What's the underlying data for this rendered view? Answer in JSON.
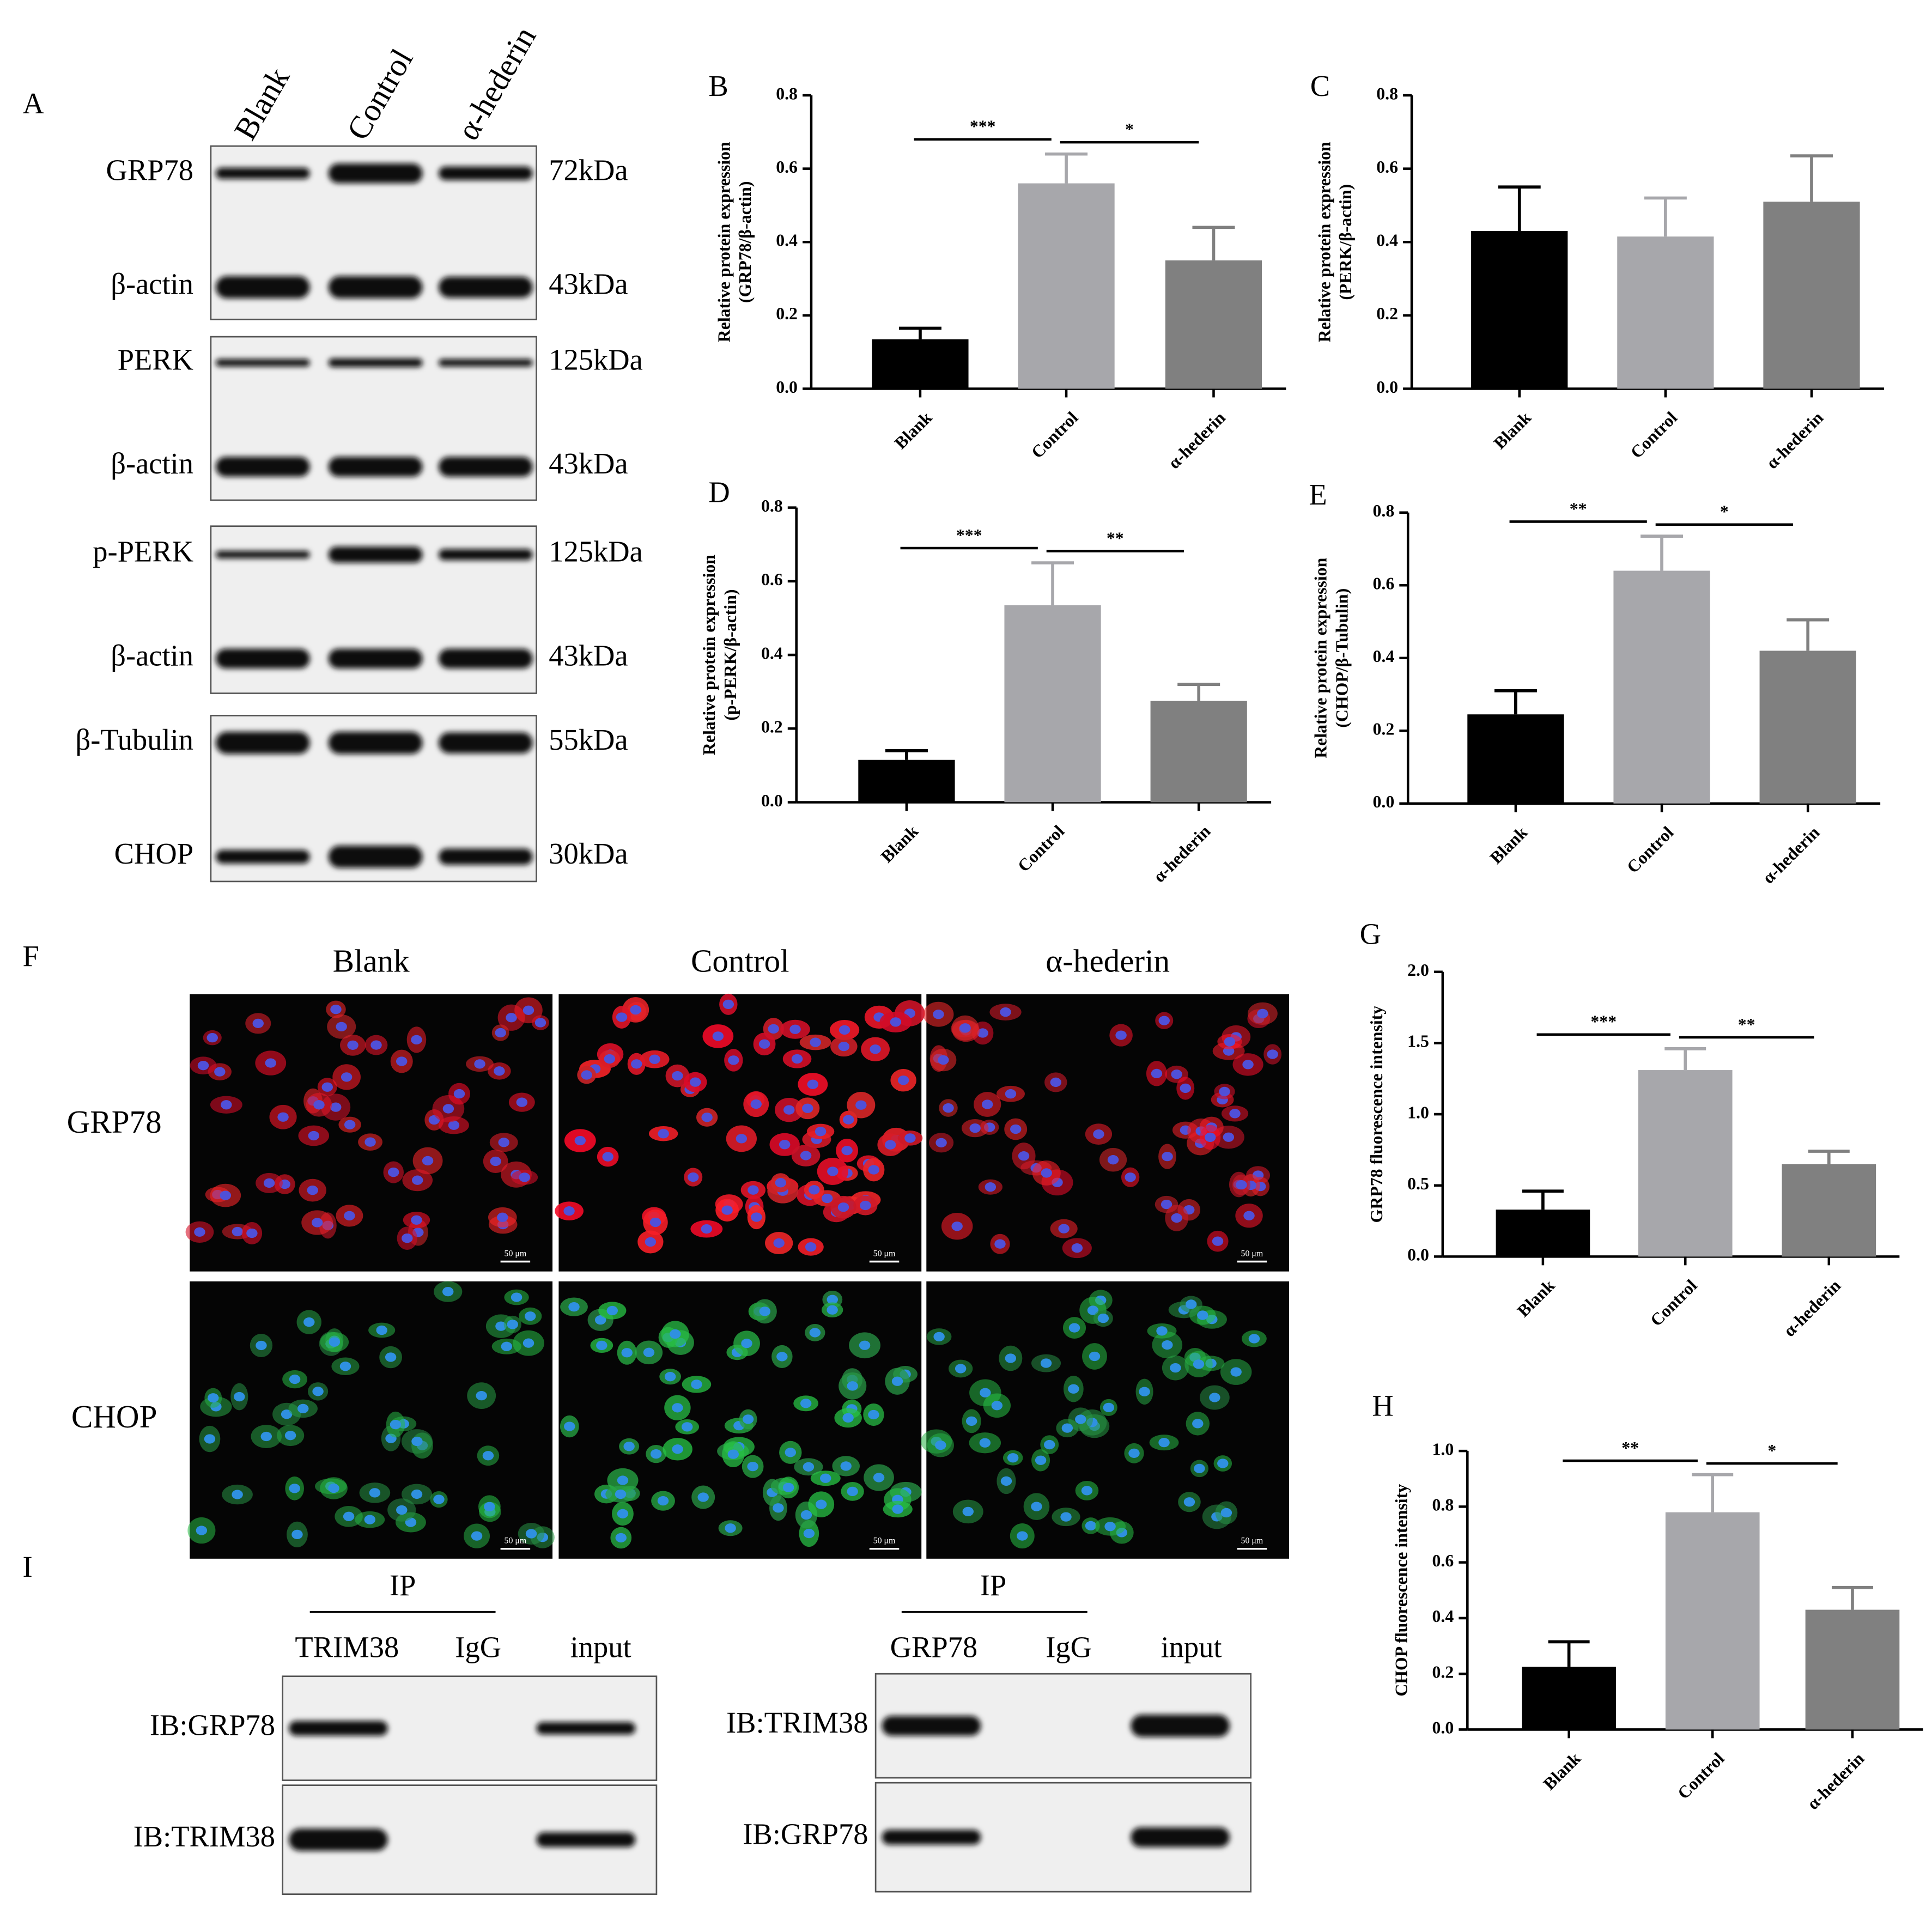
{
  "chart_data": [
    {
      "type": "bar",
      "panel": "B",
      "ylabel": [
        "Relative protein expression",
        "(GRP78/β-actin)"
      ],
      "categories": [
        "Blank",
        "Control",
        "α-hederin"
      ],
      "values": [
        0.135,
        0.56,
        0.35
      ],
      "errors": [
        0.03,
        0.08,
        0.09
      ],
      "colors": [
        "#000000",
        "#a7a7ab",
        "#808080"
      ],
      "ylim": [
        0,
        0.8
      ],
      "yticks": [
        {
          "value": 0,
          "label": "0.0"
        },
        0.2,
        0.4,
        0.6,
        0.8
      ],
      "significance": [
        "***",
        "*"
      ]
    },
    {
      "type": "bar",
      "panel": "C",
      "ylabel": [
        "Relative protein expression",
        "(PERK/β-actin)"
      ],
      "categories": [
        "Blank",
        "Control",
        "α-hederin"
      ],
      "values": [
        0.43,
        0.415,
        0.51
      ],
      "errors": [
        0.12,
        0.105,
        0.125
      ],
      "colors": [
        "#000000",
        "#a7a7ab",
        "#808080"
      ],
      "ylim": [
        0,
        0.8
      ],
      "yticks": [
        {
          "value": 0,
          "label": "0.0"
        },
        0.2,
        0.4,
        0.6,
        0.8
      ],
      "significance": []
    },
    {
      "type": "bar",
      "panel": "D",
      "ylabel": [
        "Relative protein expression",
        "(p-PERK/β-actin)"
      ],
      "categories": [
        "Blank",
        "Control",
        "α-hederin"
      ],
      "values": [
        0.115,
        0.535,
        0.275
      ],
      "errors": [
        0.025,
        0.115,
        0.045
      ],
      "colors": [
        "#000000",
        "#a7a7ab",
        "#808080"
      ],
      "ylim": [
        0,
        0.8
      ],
      "yticks": [
        {
          "value": 0,
          "label": "0.0"
        },
        0.2,
        0.4,
        0.6,
        0.8
      ],
      "significance": [
        "***",
        "**"
      ]
    },
    {
      "type": "bar",
      "panel": "E",
      "ylabel": [
        "Relative protein expression",
        "(CHOP/β-Tubulin)"
      ],
      "categories": [
        "Blank",
        "Control",
        "α-hederin"
      ],
      "values": [
        0.245,
        0.64,
        0.42
      ],
      "errors": [
        0.065,
        0.095,
        0.085
      ],
      "colors": [
        "#000000",
        "#a7a7ab",
        "#808080"
      ],
      "ylim": [
        0,
        0.8
      ],
      "yticks": [
        {
          "value": 0,
          "label": "0.0"
        },
        0.2,
        0.4,
        0.6,
        0.8
      ],
      "significance": [
        "**",
        "*"
      ]
    },
    {
      "type": "bar",
      "panel": "G",
      "ylabel": [
        "GRP78 fluorescence intensity"
      ],
      "categories": [
        "Blank",
        "Control",
        "α-hederin"
      ],
      "values": [
        0.33,
        1.31,
        0.65
      ],
      "errors": [
        0.13,
        0.15,
        0.09
      ],
      "colors": [
        "#000000",
        "#a7a7ab",
        "#808080"
      ],
      "ylim": [
        0,
        2
      ],
      "yticks": [
        {
          "value": 0,
          "label": "0.0"
        },
        0.5,
        {
          "value": 1,
          "label": "1.0"
        },
        1.5,
        {
          "value": 2,
          "label": "2.0"
        }
      ],
      "significance": [
        "***",
        "**"
      ]
    },
    {
      "type": "bar",
      "panel": "H",
      "ylabel": [
        "CHOP fluorescence intensity"
      ],
      "categories": [
        "Blank",
        "Control",
        "α-hederin"
      ],
      "values": [
        0.225,
        0.78,
        0.43
      ],
      "errors": [
        0.09,
        0.135,
        0.08
      ],
      "colors": [
        "#000000",
        "#a7a7ab",
        "#808080"
      ],
      "ylim": [
        0,
        1
      ],
      "yticks": [
        {
          "value": 0,
          "label": "0.0"
        },
        0.2,
        0.4,
        0.6,
        0.8,
        {
          "value": 1,
          "label": "1.0"
        }
      ],
      "significance": [
        "**",
        "*"
      ]
    }
  ],
  "blot": {
    "panel": "A",
    "lanes": [
      "Blank",
      "Control",
      "α-hederin"
    ],
    "bands": [
      {
        "label": "GRP78",
        "size": "72kDa"
      },
      {
        "label": "β-actin",
        "size": "43kDa"
      },
      {
        "label": "PERK",
        "size": "125kDa"
      },
      {
        "label": "β-actin",
        "size": "43kDa"
      },
      {
        "label": "p-PERK",
        "size": "125kDa"
      },
      {
        "label": "β-actin",
        "size": "43kDa"
      },
      {
        "label": "β-Tubulin",
        "size": "55kDa"
      },
      {
        "label": "CHOP",
        "size": "30kDa"
      }
    ]
  },
  "fluorescence": {
    "panel": "F",
    "columns": [
      "Blank",
      "Control",
      "α-hederin"
    ],
    "rows": [
      "GRP78",
      "CHOP"
    ],
    "scale_bar": "50 μm"
  },
  "coip": {
    "panel": "I",
    "blots": [
      {
        "ip": "IP",
        "lanes": [
          "TRIM38",
          "IgG",
          "input"
        ],
        "rows": [
          "IB:GRP78",
          "IB:TRIM38"
        ]
      },
      {
        "ip": "IP",
        "lanes": [
          "GRP78",
          "IgG",
          "input"
        ],
        "rows": [
          "IB:TRIM38",
          "IB:GRP78"
        ]
      }
    ]
  }
}
